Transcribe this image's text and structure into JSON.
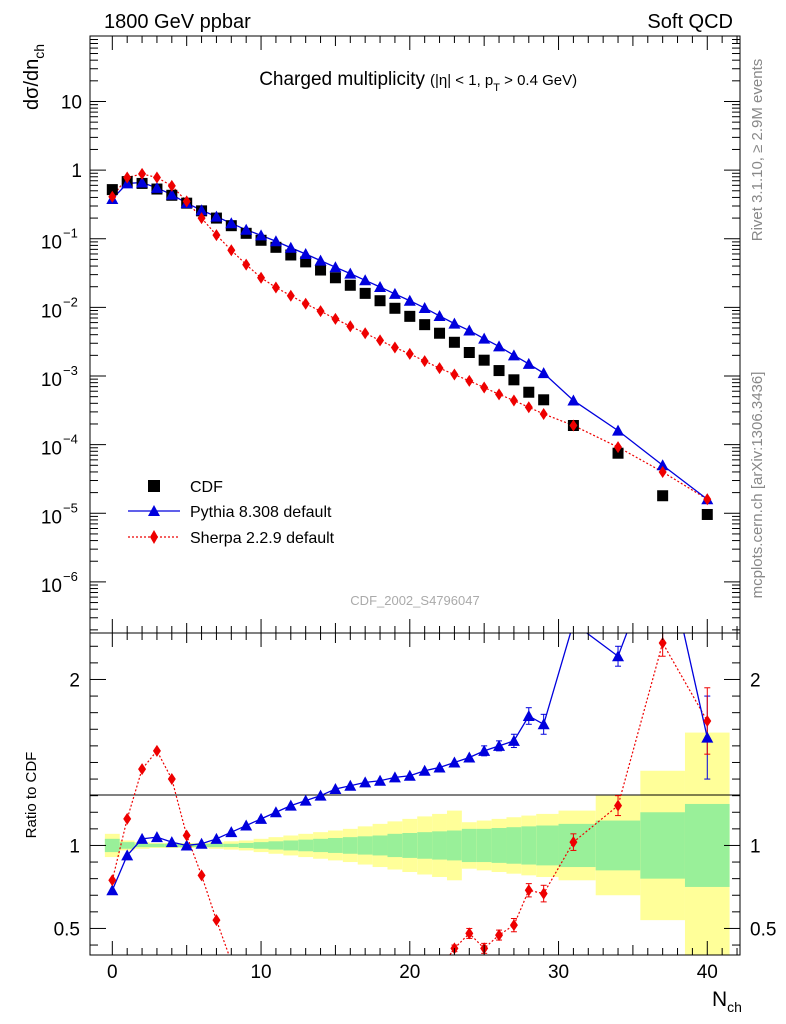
{
  "header": {
    "left_label": "1800 GeV ppbar",
    "right_label": "Soft QCD"
  },
  "side_labels": {
    "rivet": "Rivet 3.1.10, ≥ 2.9M events",
    "mcplots": "mcplots.cern.ch [arXiv:1306.3436]"
  },
  "chart_data": {
    "type": "scatter",
    "title_main": "Charged multiplicity",
    "title_cuts_a": "(|η| < 1, p",
    "title_cuts_sub": "T",
    "title_cuts_b": " > 0.4 GeV)",
    "watermark": "CDF_2002_S4796047",
    "y_label_main": "dσ/dn",
    "y_label_sub": "ch",
    "x_label_main": "N",
    "x_label_sub": "ch",
    "ratio_label": "Ratio to CDF",
    "x_range": [
      -1.5,
      42.2
    ],
    "y_range_log": [
      1.8e-07,
      90
    ],
    "y_scale": "log",
    "ratio_range": [
      0.34,
      2.28
    ],
    "x_ticks": [
      0,
      10,
      20,
      30,
      40
    ],
    "y_ticks": [
      {
        "value": 10,
        "base": "10",
        "exp": ""
      },
      {
        "value": 1,
        "base": "1",
        "exp": ""
      },
      {
        "value": 0.1,
        "base": "10",
        "exp": "−1"
      },
      {
        "value": 0.01,
        "base": "10",
        "exp": "−2"
      },
      {
        "value": 0.001,
        "base": "10",
        "exp": "−3"
      },
      {
        "value": 0.0001,
        "base": "10",
        "exp": "−4"
      },
      {
        "value": 1e-05,
        "base": "10",
        "exp": "−5"
      },
      {
        "value": 1e-06,
        "base": "10",
        "exp": "−6"
      }
    ],
    "ratio_ticks": [
      0.5,
      1,
      2
    ],
    "ratio_tick_labels": [
      "0.5",
      "1",
      "2"
    ],
    "legend_position": "bottom-left",
    "colors": {
      "data": "#000000",
      "pythia": "#0000dd",
      "sherpa": "#ee0000",
      "band_inner": "#99f099",
      "band_outer": "#ffff99"
    },
    "series": [
      {
        "name": "CDF",
        "style": "square",
        "x": [
          0,
          1,
          2,
          3,
          4,
          5,
          6,
          7,
          8,
          9,
          10,
          11,
          12,
          13,
          14,
          15,
          16,
          17,
          18,
          19,
          20,
          21,
          22,
          23,
          24,
          25,
          26,
          27,
          28,
          29,
          31,
          34,
          37,
          40
        ],
        "y": [
          0.52,
          0.68,
          0.64,
          0.53,
          0.43,
          0.33,
          0.255,
          0.2,
          0.155,
          0.12,
          0.095,
          0.075,
          0.058,
          0.046,
          0.035,
          0.027,
          0.021,
          0.016,
          0.0125,
          0.0097,
          0.0074,
          0.0056,
          0.0042,
          0.0031,
          0.0022,
          0.0017,
          0.0012,
          0.00088,
          0.00058,
          0.00045,
          0.00019,
          7.5e-05,
          1.8e-05,
          9.6e-06
        ]
      },
      {
        "name": "Pythia 8.308 default",
        "style": "triangle-line",
        "x": [
          0,
          1,
          2,
          3,
          4,
          5,
          6,
          7,
          8,
          9,
          10,
          11,
          12,
          13,
          14,
          15,
          16,
          17,
          18,
          19,
          20,
          21,
          22,
          23,
          24,
          25,
          26,
          27,
          28,
          29,
          31,
          34,
          37,
          40
        ],
        "y": [
          0.38,
          0.64,
          0.66,
          0.55,
          0.44,
          0.33,
          0.26,
          0.21,
          0.168,
          0.135,
          0.112,
          0.092,
          0.074,
          0.06,
          0.048,
          0.0385,
          0.031,
          0.0248,
          0.0198,
          0.0157,
          0.0125,
          0.0098,
          0.0075,
          0.0058,
          0.0046,
          0.0035,
          0.0027,
          0.002,
          0.0015,
          0.0011,
          0.00044,
          0.00016,
          5e-05,
          1.6e-05
        ]
      },
      {
        "name": "Sherpa 2.2.9 default",
        "style": "diamond-dotted",
        "x": [
          0,
          1,
          2,
          3,
          4,
          5,
          6,
          7,
          8,
          9,
          10,
          11,
          12,
          13,
          14,
          15,
          16,
          17,
          18,
          19,
          20,
          21,
          22,
          23,
          24,
          25,
          26,
          27,
          28,
          29,
          31,
          34,
          37,
          40
        ],
        "y": [
          0.41,
          0.78,
          0.88,
          0.78,
          0.59,
          0.35,
          0.2,
          0.113,
          0.068,
          0.042,
          0.027,
          0.0195,
          0.0148,
          0.0113,
          0.0088,
          0.0068,
          0.0053,
          0.0042,
          0.0033,
          0.0026,
          0.0021,
          0.00165,
          0.0013,
          0.00105,
          0.00085,
          0.00068,
          0.00054,
          0.00044,
          0.00035,
          0.00028,
          0.00019,
          9.2e-05,
          4e-05,
          1.6e-05
        ]
      }
    ],
    "ratios": {
      "pythia": {
        "x": [
          0,
          1,
          2,
          3,
          4,
          5,
          6,
          7,
          8,
          9,
          10,
          11,
          12,
          13,
          14,
          15,
          16,
          17,
          18,
          19,
          20,
          21,
          22,
          23,
          24,
          25,
          26,
          27,
          28,
          29,
          31,
          34,
          37,
          40
        ],
        "y": [
          0.73,
          0.94,
          1.04,
          1.05,
          1.02,
          1.0,
          1.01,
          1.04,
          1.08,
          1.12,
          1.16,
          1.2,
          1.24,
          1.27,
          1.3,
          1.34,
          1.36,
          1.38,
          1.39,
          1.41,
          1.42,
          1.45,
          1.47,
          1.5,
          1.53,
          1.57,
          1.6,
          1.63,
          1.78,
          1.73,
          2.34,
          2.14,
          2.85,
          1.65
        ],
        "err": [
          0,
          0,
          0,
          0,
          0,
          0,
          0,
          0,
          0,
          0,
          0,
          0,
          0,
          0,
          0,
          0,
          0,
          0,
          0,
          0,
          0,
          0,
          0,
          0,
          0,
          0.03,
          0.03,
          0.04,
          0.05,
          0.06,
          0.05,
          0.06,
          0,
          0.25
        ]
      },
      "sherpa": {
        "x": [
          0,
          1,
          2,
          3,
          4,
          5,
          6,
          7,
          8,
          9,
          10,
          11,
          12,
          13,
          14,
          15,
          16,
          17,
          18,
          19,
          20,
          21,
          22,
          23,
          24,
          25,
          26,
          27,
          28,
          29,
          31,
          34,
          37,
          40
        ],
        "y": [
          0.79,
          1.16,
          1.46,
          1.57,
          1.4,
          1.06,
          0.82,
          0.55,
          0.3,
          0.15,
          0.1,
          0.1,
          0.1,
          0.1,
          0.1,
          0.1,
          0.1,
          0.1,
          0.1,
          0.1,
          0.1,
          0.1,
          0.25,
          0.38,
          0.47,
          0.38,
          0.46,
          0.52,
          0.73,
          0.71,
          1.02,
          1.24,
          2.22,
          1.75
        ],
        "err": [
          0,
          0,
          0,
          0,
          0,
          0,
          0,
          0,
          0,
          0,
          0,
          0,
          0,
          0,
          0,
          0,
          0,
          0,
          0,
          0,
          0,
          0,
          0,
          0.02,
          0.03,
          0.03,
          0.03,
          0.04,
          0.04,
          0.05,
          0.05,
          0.06,
          0.08,
          0.2
        ]
      }
    },
    "uncertainty_bands": {
      "x": [
        0,
        1,
        2,
        3,
        4,
        5,
        6,
        7,
        8,
        9,
        10,
        11,
        12,
        13,
        14,
        15,
        16,
        17,
        18,
        19,
        20,
        21,
        22,
        23,
        24,
        25,
        26,
        27,
        28,
        29,
        31,
        34,
        37,
        40
      ],
      "inner": [
        0.04,
        0.02,
        0.01,
        0.01,
        0.01,
        0.01,
        0.01,
        0.01,
        0.01,
        0.015,
        0.02,
        0.025,
        0.03,
        0.035,
        0.04,
        0.045,
        0.05,
        0.055,
        0.06,
        0.07,
        0.075,
        0.08,
        0.085,
        0.09,
        0.1,
        0.1,
        0.105,
        0.11,
        0.115,
        0.12,
        0.13,
        0.15,
        0.2,
        0.25
      ],
      "outer": [
        0.07,
        0.03,
        0.02,
        0.015,
        0.015,
        0.015,
        0.015,
        0.02,
        0.025,
        0.03,
        0.04,
        0.05,
        0.06,
        0.07,
        0.08,
        0.09,
        0.1,
        0.115,
        0.13,
        0.145,
        0.16,
        0.175,
        0.19,
        0.21,
        0.14,
        0.15,
        0.16,
        0.17,
        0.18,
        0.19,
        0.21,
        0.3,
        0.45,
        0.68
      ]
    }
  }
}
